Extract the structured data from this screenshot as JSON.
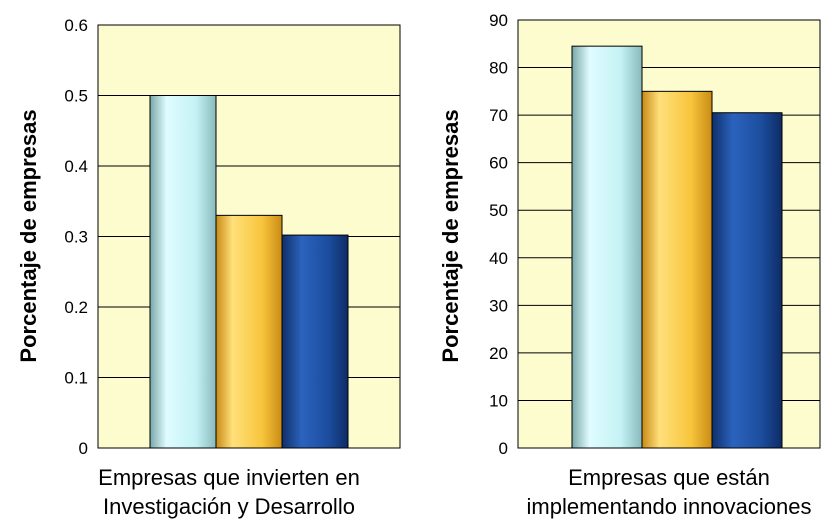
{
  "chart_data": [
    {
      "type": "bar",
      "ylabel": "Porcentaje de empresas",
      "ylim": [
        0,
        0.6
      ],
      "yticks": [
        "0",
        "0.1",
        "0.2",
        "0.3",
        "0.4",
        "0.5",
        "0.6"
      ],
      "category_label_lines": [
        "Empresas que invierten en",
        "Investigación y Desarrollo"
      ],
      "series": [
        {
          "values": [
            0.5
          ],
          "color": "#bfeff2"
        },
        {
          "values": [
            0.33
          ],
          "color": "#f5c33a"
        },
        {
          "values": [
            0.302
          ],
          "color": "#1b4ea0"
        }
      ],
      "plot_background": "#fdfccf",
      "grid": "horizontal"
    },
    {
      "type": "bar",
      "ylabel": "Porcentaje de empresas",
      "ylim": [
        0,
        90
      ],
      "yticks": [
        "0",
        "10",
        "20",
        "30",
        "40",
        "50",
        "60",
        "70",
        "80",
        "90"
      ],
      "category_label_lines": [
        "Empresas que están",
        "implementando innovaciones"
      ],
      "series": [
        {
          "values": [
            84.5
          ],
          "color": "#bfeff2"
        },
        {
          "values": [
            75
          ],
          "color": "#f5c33a"
        },
        {
          "values": [
            70.5
          ],
          "color": "#1b4ea0"
        }
      ],
      "plot_background": "#fdfccf",
      "grid": "horizontal"
    }
  ]
}
